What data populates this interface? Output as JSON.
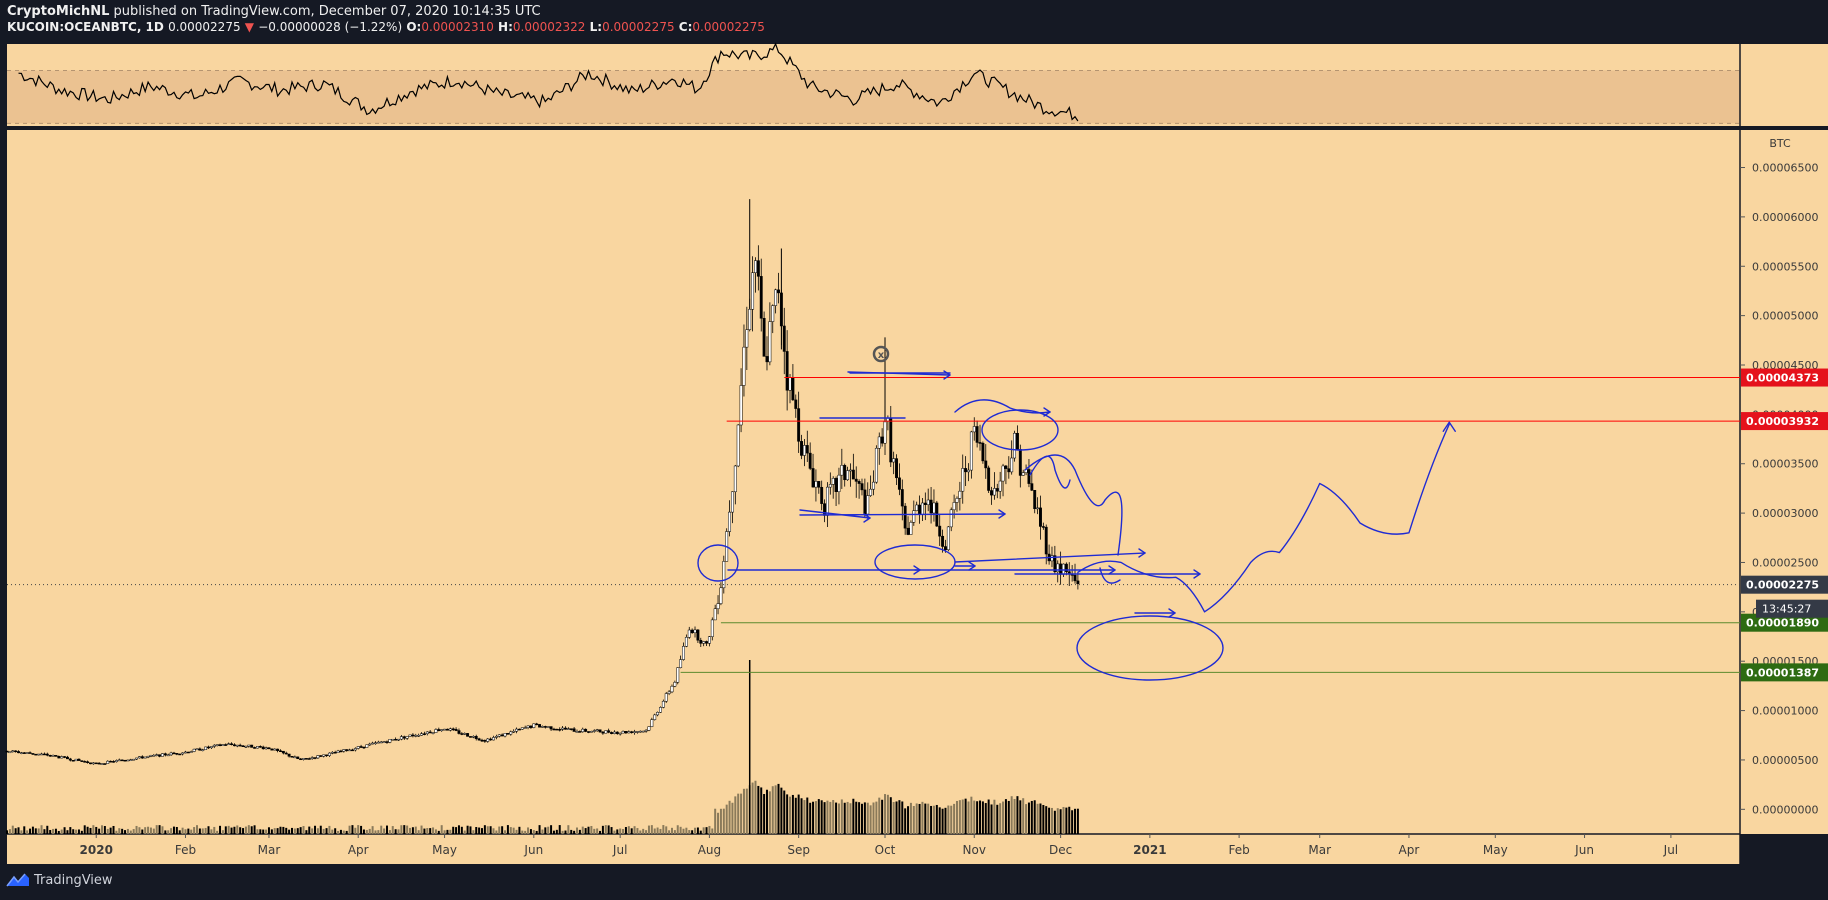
{
  "header": {
    "author": "CryptoMichNL",
    "published_text": "published on TradingView.com, December 07, 2020 10:14:35 UTC",
    "symbol": "KUCOIN:OCEANBTC, 1D",
    "last": "0.00002275",
    "change": "−0.00000028 (−1.22%)",
    "open_label": "O:",
    "open": "0.00002310",
    "high_label": "H:",
    "high": "0.00002322",
    "low_label": "L:",
    "low": "0.00002275",
    "close_label": "C:",
    "close": "0.00002275"
  },
  "footer": {
    "brand": "TradingView",
    "logo_icon": "tradingview-logo-icon"
  },
  "colors": {
    "background": "#f9d6a0",
    "outer": "#151924",
    "resistance": "#ff0000",
    "support": "#2e7d32",
    "drawing": "#1f2bd3",
    "candle": "#000000"
  },
  "chart_data": [
    {
      "type": "line",
      "name": "oscillator-pane",
      "ylim": [
        28,
        90
      ],
      "y_ticks": [
        "80.00",
        "40.00"
      ],
      "band": [
        30,
        70
      ],
      "x": [
        "2019-12-05",
        "2019-12-20",
        "2020-01-05",
        "2020-01-20",
        "2020-02-05",
        "2020-02-20",
        "2020-03-05",
        "2020-03-20",
        "2020-04-05",
        "2020-04-20",
        "2020-05-05",
        "2020-05-20",
        "2020-06-05",
        "2020-06-20",
        "2020-07-05",
        "2020-07-20",
        "2020-07-28",
        "2020-08-05",
        "2020-08-15",
        "2020-08-25",
        "2020-09-05",
        "2020-09-20",
        "2020-10-05",
        "2020-10-20",
        "2020-11-01",
        "2020-11-15",
        "2020-11-25",
        "2020-12-07"
      ],
      "values": [
        68,
        55,
        48,
        58,
        50,
        62,
        55,
        60,
        40,
        55,
        63,
        52,
        46,
        68,
        54,
        64,
        56,
        84,
        80,
        86,
        58,
        48,
        60,
        45,
        68,
        52,
        42,
        36
      ]
    },
    {
      "type": "candlestick",
      "name": "KUCOIN:OCEANBTC",
      "unit": "BTC",
      "y_ticks": [
        "0.00006500",
        "0.00006000",
        "0.00005500",
        "0.00005000",
        "0.00004500",
        "0.00004000",
        "0.00003500",
        "0.00003000",
        "0.00002500",
        "0.00002000",
        "0.00001500",
        "0.00001000",
        "0.00000500",
        "0.00000000"
      ],
      "ylim": [
        -2.5e-06,
        6.88e-05
      ],
      "x_axis_labels": [
        "2020",
        "Feb",
        "Mar",
        "Apr",
        "May",
        "Jun",
        "Jul",
        "Aug",
        "Sep",
        "Oct",
        "Nov",
        "Dec",
        "2021",
        "Feb",
        "Mar",
        "Apr",
        "May",
        "Jun",
        "Jul"
      ],
      "x_range": [
        "2019-12-01",
        "2021-07-25"
      ],
      "close_path": [
        [
          "2019-12-01",
          5.9e-06
        ],
        [
          "2019-12-15",
          5.5e-06
        ],
        [
          "2020-01-01",
          4.6e-06
        ],
        [
          "2020-01-15",
          5.2e-06
        ],
        [
          "2020-02-01",
          5.8e-06
        ],
        [
          "2020-02-15",
          6.6e-06
        ],
        [
          "2020-03-01",
          6.2e-06
        ],
        [
          "2020-03-12",
          5e-06
        ],
        [
          "2020-03-25",
          5.8e-06
        ],
        [
          "2020-04-15",
          7.2e-06
        ],
        [
          "2020-05-01",
          8.2e-06
        ],
        [
          "2020-05-15",
          7e-06
        ],
        [
          "2020-06-01",
          8.5e-06
        ],
        [
          "2020-06-15",
          8e-06
        ],
        [
          "2020-07-01",
          7.8e-06
        ],
        [
          "2020-07-10",
          8e-06
        ],
        [
          "2020-07-20",
          1.3e-05
        ],
        [
          "2020-07-25",
          1.85e-05
        ],
        [
          "2020-07-31",
          1.65e-05
        ],
        [
          "2020-08-05",
          2.3e-05
        ],
        [
          "2020-08-10",
          3.6e-05
        ],
        [
          "2020-08-14",
          5e-05
        ],
        [
          "2020-08-17",
          5.6e-05
        ],
        [
          "2020-08-20",
          4.5e-05
        ],
        [
          "2020-08-25",
          5.3e-05
        ],
        [
          "2020-08-28",
          4.4e-05
        ],
        [
          "2020-09-03",
          3.6e-05
        ],
        [
          "2020-09-10",
          3.1e-05
        ],
        [
          "2020-09-18",
          3.45e-05
        ],
        [
          "2020-09-25",
          3.05e-05
        ],
        [
          "2020-10-01",
          4e-05
        ],
        [
          "2020-10-08",
          2.8e-05
        ],
        [
          "2020-10-15",
          3.2e-05
        ],
        [
          "2020-10-22",
          2.7e-05
        ],
        [
          "2020-11-01",
          3.8e-05
        ],
        [
          "2020-11-08",
          3.2e-05
        ],
        [
          "2020-11-15",
          3.7e-05
        ],
        [
          "2020-11-22",
          3.1e-05
        ],
        [
          "2020-11-28",
          2.5e-05
        ],
        [
          "2020-12-03",
          2.4e-05
        ],
        [
          "2020-12-07",
          2.28e-05
        ]
      ],
      "notable_highs": [
        [
          "2020-08-15",
          6.18e-05
        ],
        [
          "2020-08-26",
          5.68e-05
        ],
        [
          "2020-10-01",
          4.78e-05
        ]
      ],
      "volume_spike": [
        "2020-08-15",
        "tall"
      ],
      "levels": [
        {
          "label": "0.00004373",
          "value": 4.373e-05,
          "color": "red"
        },
        {
          "label": "0.00003932",
          "value": 3.932e-05,
          "color": "red"
        },
        {
          "label": "0.00002275",
          "value": 2.275e-05,
          "color": "last-price"
        },
        {
          "label": "0.00001890",
          "value": 1.89e-05,
          "color": "green"
        },
        {
          "label": "0.00001387",
          "value": 1.387e-05,
          "color": "green"
        }
      ],
      "countdown": "13:45:27",
      "projection_path": [
        [
          "2020-12-07",
          2.4e-05
        ],
        [
          "2020-12-22",
          2.5e-05
        ],
        [
          "2021-01-10",
          2.35e-05
        ],
        [
          "2021-01-20",
          2e-05
        ],
        [
          "2021-02-05",
          2.5e-05
        ],
        [
          "2021-02-15",
          2.6e-05
        ],
        [
          "2021-03-01",
          3.3e-05
        ],
        [
          "2021-03-15",
          2.9e-05
        ],
        [
          "2021-04-01",
          2.8e-05
        ],
        [
          "2021-04-15",
          3.9e-05
        ]
      ]
    }
  ]
}
